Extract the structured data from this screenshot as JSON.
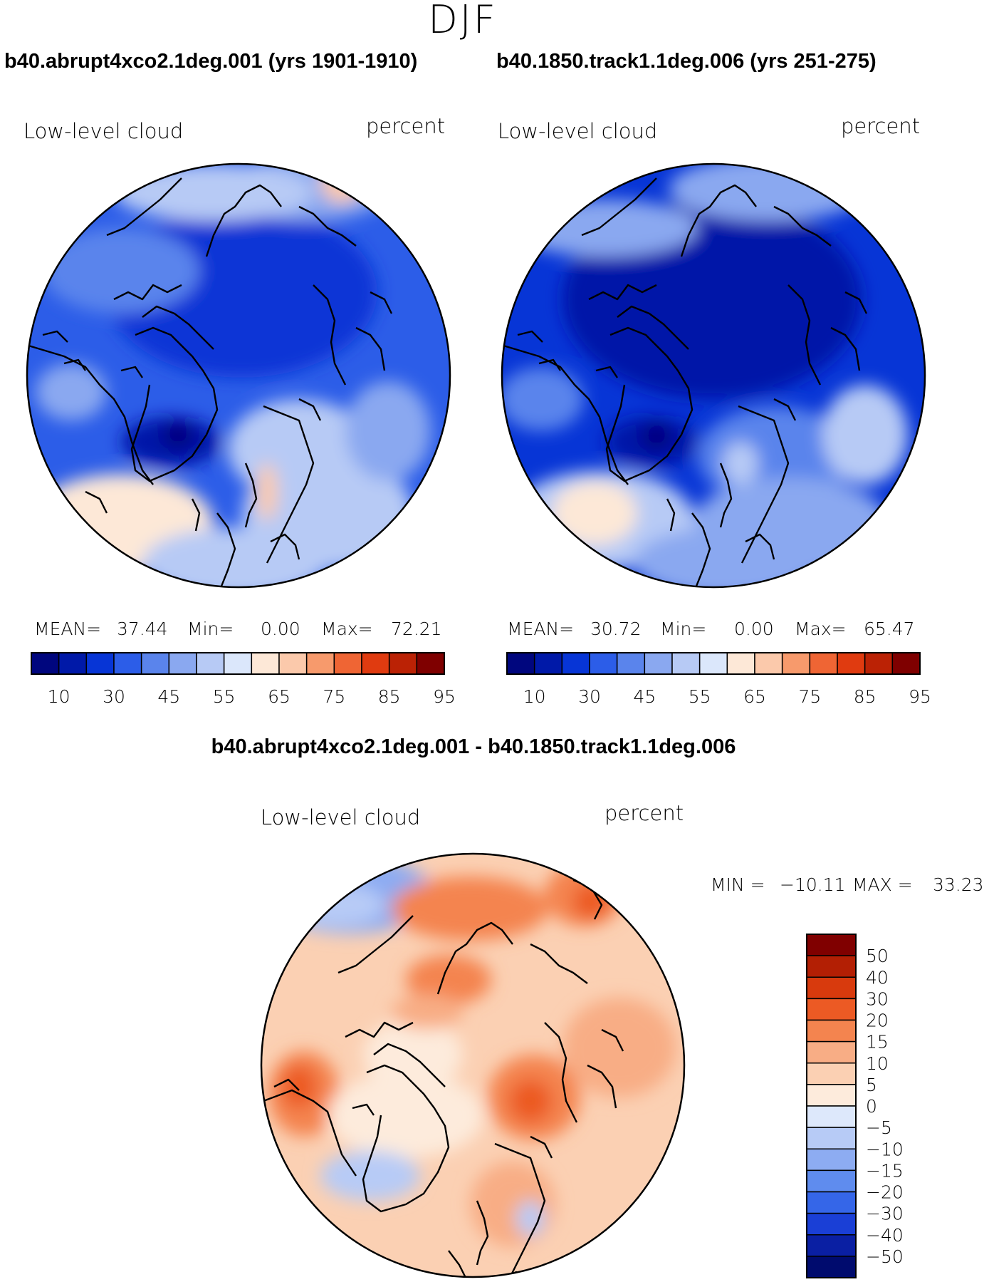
{
  "figure": {
    "season": "DJF",
    "diff_title": "b40.abrupt4xco2.1deg.001 - b40.1850.track1.1deg.006"
  },
  "colors": {
    "bluered14": [
      "#00067e",
      "#0019a8",
      "#0735d6",
      "#2c5de8",
      "#5a84ec",
      "#8aa8f0",
      "#b7caf5",
      "#dbe7fb",
      "#fde8d7",
      "#fbc9ab",
      "#f79a6c",
      "#ef6534",
      "#e03b10",
      "#bb2205",
      "#7f0000"
    ],
    "diff16": [
      "#000b6e",
      "#0a1fa3",
      "#1a3fd6",
      "#3566e8",
      "#5f8cee",
      "#8dacf2",
      "#b7cbf6",
      "#dde8fb",
      "#fdebdc",
      "#fbd0b3",
      "#f8ad85",
      "#f4844f",
      "#ec5a24",
      "#d83a0d",
      "#b31f04",
      "#800000"
    ]
  },
  "chart_data": [
    {
      "type": "polar-map",
      "title": "b40.abrupt4xco2.1deg.001 (yrs 1901-1910)",
      "variable": "Low-level cloud",
      "units": "percent",
      "stats": {
        "mean_label": "MEAN=",
        "mean": "37.44",
        "min_label": "Min=",
        "min": "0.00",
        "max_label": "Max=",
        "max": "72.21"
      },
      "colorbar": {
        "levels": [
          5,
          10,
          15,
          20,
          30,
          40,
          45,
          50,
          55,
          60,
          65,
          70,
          75,
          80,
          85,
          90,
          95
        ],
        "tick_labels": [
          "10",
          "30",
          "45",
          "55",
          "65",
          "75",
          "85",
          "95"
        ]
      }
    },
    {
      "type": "polar-map",
      "title": "b40.1850.track1.1deg.006 (yrs 251-275)",
      "variable": "Low-level cloud",
      "units": "percent",
      "stats": {
        "mean_label": "MEAN=",
        "mean": "30.72",
        "min_label": "Min=",
        "min": "0.00",
        "max_label": "Max=",
        "max": "65.47"
      },
      "colorbar": {
        "levels": [
          5,
          10,
          15,
          20,
          30,
          40,
          45,
          50,
          55,
          60,
          65,
          70,
          75,
          80,
          85,
          90,
          95
        ],
        "tick_labels": [
          "10",
          "30",
          "45",
          "55",
          "65",
          "75",
          "85",
          "95"
        ]
      }
    },
    {
      "type": "polar-map-difference",
      "variable": "Low-level cloud",
      "units": "percent",
      "stats": {
        "min_label": "MIN =",
        "min": "−10.11",
        "max_label": "MAX =",
        "max": "33.23"
      },
      "colorbar": {
        "levels": [
          50,
          40,
          30,
          20,
          15,
          10,
          5,
          0,
          -5,
          -10,
          -15,
          -20,
          -30,
          -40,
          -50
        ],
        "tick_labels": [
          "50",
          "40",
          "30",
          "20",
          "15",
          "10",
          "5",
          "0",
          "−5",
          "−10",
          "−15",
          "−20",
          "−30",
          "−40",
          "−50"
        ]
      }
    }
  ]
}
